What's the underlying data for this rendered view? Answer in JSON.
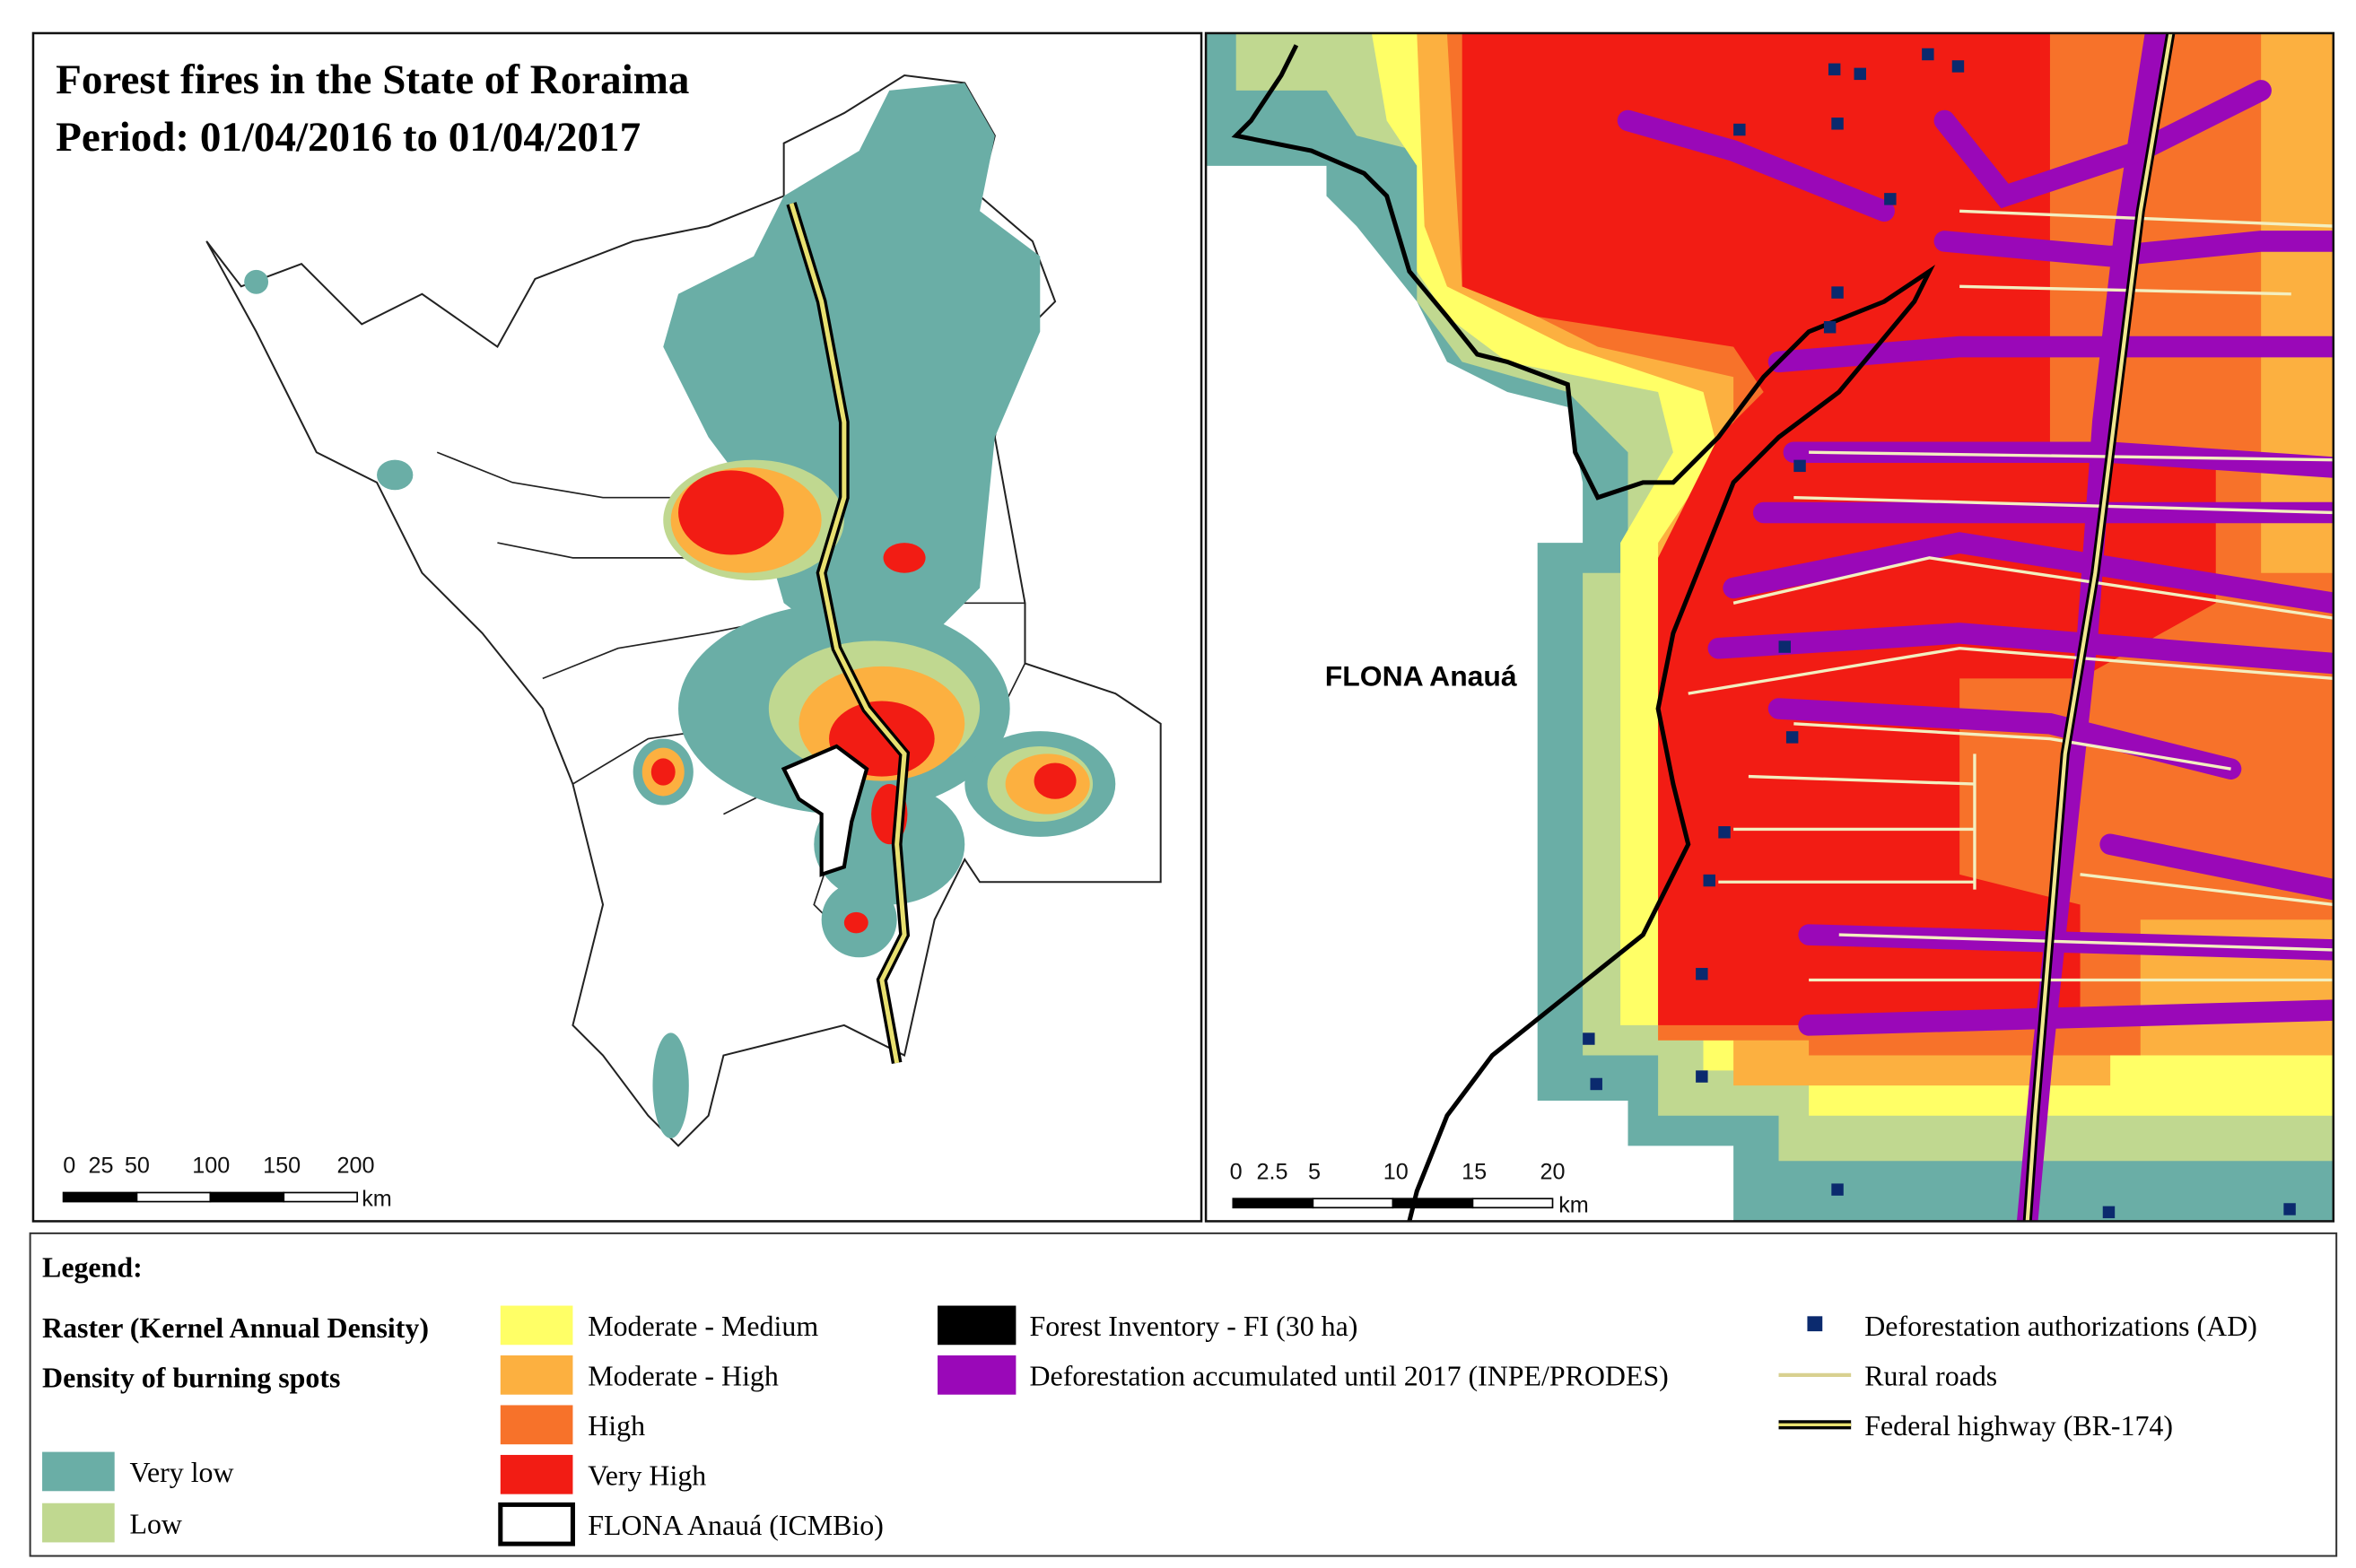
{
  "left_map": {
    "title": [
      "Forest fires in the State of Roraima",
      "Period: 01/04/2016 to 01/04/2017"
    ],
    "scale_bar": {
      "labels": [
        0,
        25,
        50,
        100,
        150,
        200
      ],
      "unit": "km"
    }
  },
  "right_map": {
    "label": "FLONA Anauá",
    "scale_bar": {
      "labels": [
        0,
        2.5,
        5,
        10,
        15,
        20
      ],
      "unit": "km"
    }
  },
  "legend": {
    "title": "Legend:",
    "raster_heading": "Raster (Kernel Annual Density)",
    "density_heading": "Density of burning spots",
    "items": [
      "Very low",
      "Low",
      "Moderate - Medium",
      "Moderate - High",
      "High",
      "Very High",
      "FLONA Anauá (ICMBio)",
      "Forest Inventory - FI (30 ha)",
      "Deforestation accumulated until 2017 (INPE/PRODES)",
      "Deforestation authorizations (AD)",
      "Rural roads",
      "Federal highway (BR-174)"
    ]
  }
}
